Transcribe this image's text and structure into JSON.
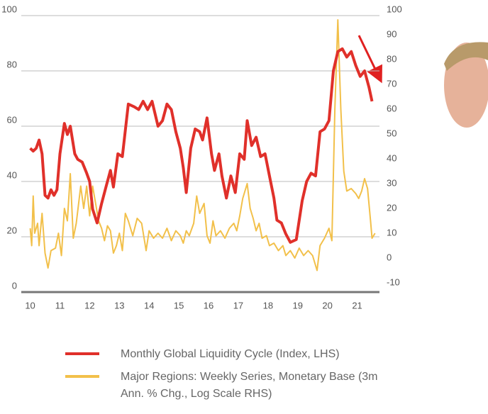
{
  "chart_data": {
    "type": "line",
    "xlim": [
      9.7,
      21.75
    ],
    "xticks": [
      10,
      11,
      12,
      13,
      14,
      15,
      16,
      17,
      18,
      19,
      20,
      21
    ],
    "ylim": [
      0,
      100
    ],
    "yticks": [
      0,
      20,
      40,
      60,
      80,
      100
    ],
    "y2lim": [
      -10,
      100
    ],
    "y2ticks": [
      -10,
      0,
      10,
      20,
      30,
      40,
      50,
      60,
      70,
      80,
      90,
      100
    ],
    "grid": true,
    "series": [
      {
        "name": "Monthly Global Liquidity Cycle (Index, LHS)",
        "color": "#e0302a",
        "axis": "y",
        "x": [
          10.0,
          10.1,
          10.2,
          10.3,
          10.4,
          10.5,
          10.6,
          10.7,
          10.8,
          10.9,
          11.0,
          11.15,
          11.25,
          11.35,
          11.5,
          11.6,
          11.75,
          11.9,
          12.0,
          12.1,
          12.25,
          12.4,
          12.55,
          12.7,
          12.8,
          12.95,
          13.1,
          13.3,
          13.5,
          13.65,
          13.8,
          13.95,
          14.1,
          14.3,
          14.45,
          14.6,
          14.75,
          14.9,
          15.05,
          15.15,
          15.25,
          15.4,
          15.55,
          15.7,
          15.8,
          15.95,
          16.1,
          16.2,
          16.35,
          16.45,
          16.6,
          16.75,
          16.9,
          17.05,
          17.2,
          17.3,
          17.45,
          17.6,
          17.75,
          17.9,
          18.05,
          18.2,
          18.3,
          18.45,
          18.6,
          18.75,
          18.95,
          19.15,
          19.3,
          19.45,
          19.6,
          19.75,
          19.9,
          20.05,
          20.2,
          20.35,
          20.5,
          20.65,
          20.8,
          20.95,
          21.1,
          21.25,
          21.4,
          21.5
        ],
        "values": [
          52,
          51,
          52,
          55,
          50,
          35,
          34,
          37,
          35,
          37,
          50,
          61,
          57,
          60,
          50,
          48,
          47,
          43,
          40,
          30,
          25,
          32,
          38,
          44,
          38,
          50,
          49,
          68,
          67,
          66,
          69,
          66,
          69,
          60,
          62,
          68,
          66,
          58,
          52,
          45,
          36,
          52,
          59,
          58,
          55,
          63,
          50,
          44,
          50,
          42,
          34,
          42,
          36,
          50,
          48,
          62,
          53,
          56,
          49,
          50,
          42,
          34,
          26,
          25,
          21,
          18,
          19,
          33,
          40,
          43,
          42,
          58,
          59,
          62,
          80,
          87,
          88,
          85,
          87,
          82,
          78,
          80,
          74,
          69
        ]
      },
      {
        "name": "Major Regions: Weekly Series, Monetary Base (3m Ann. % Chg., Log Scale RHS)",
        "color": "#f2c04a",
        "axis": "y2",
        "x": [
          10.0,
          10.05,
          10.1,
          10.15,
          10.25,
          10.3,
          10.4,
          10.5,
          10.6,
          10.7,
          10.85,
          10.95,
          11.05,
          11.15,
          11.25,
          11.35,
          11.45,
          11.55,
          11.7,
          11.8,
          11.9,
          12.0,
          12.1,
          12.2,
          12.3,
          12.4,
          12.5,
          12.6,
          12.7,
          12.8,
          12.9,
          13.0,
          13.1,
          13.2,
          13.3,
          13.45,
          13.6,
          13.75,
          13.9,
          14.0,
          14.15,
          14.3,
          14.45,
          14.6,
          14.75,
          14.9,
          15.05,
          15.15,
          15.25,
          15.35,
          15.5,
          15.6,
          15.7,
          15.85,
          15.95,
          16.05,
          16.15,
          16.25,
          16.4,
          16.55,
          16.7,
          16.85,
          16.95,
          17.05,
          17.15,
          17.3,
          17.4,
          17.5,
          17.6,
          17.7,
          17.8,
          17.95,
          18.05,
          18.2,
          18.35,
          18.5,
          18.6,
          18.75,
          18.9,
          19.05,
          19.2,
          19.35,
          19.5,
          19.65,
          19.75,
          19.9,
          20.05,
          20.15,
          20.25,
          20.35,
          20.45,
          20.55,
          20.65,
          20.8,
          20.95,
          21.05,
          21.15,
          21.25,
          21.35,
          21.45,
          21.5,
          21.6
        ],
        "values": [
          12,
          5,
          25,
          10,
          14,
          5,
          18,
          2,
          -4,
          3,
          4,
          10,
          1,
          20,
          15,
          34,
          8,
          14,
          29,
          20,
          29,
          17,
          29,
          22,
          15,
          12,
          7,
          13,
          11,
          2,
          5,
          10,
          3,
          18,
          15,
          9,
          16,
          14,
          3,
          11,
          8,
          10,
          8,
          12,
          7,
          11,
          9,
          6,
          11,
          9,
          14,
          25,
          18,
          22,
          9,
          6,
          15,
          9,
          11,
          8,
          12,
          14,
          11,
          17,
          24,
          30,
          20,
          16,
          11,
          14,
          8,
          9,
          5,
          6,
          3,
          5,
          1,
          3,
          0,
          4,
          1,
          3,
          1,
          -5,
          5,
          8,
          12,
          7,
          60,
          96,
          60,
          35,
          27,
          28,
          26,
          24,
          27,
          32,
          28,
          15,
          8,
          10
        ]
      }
    ]
  }
}
